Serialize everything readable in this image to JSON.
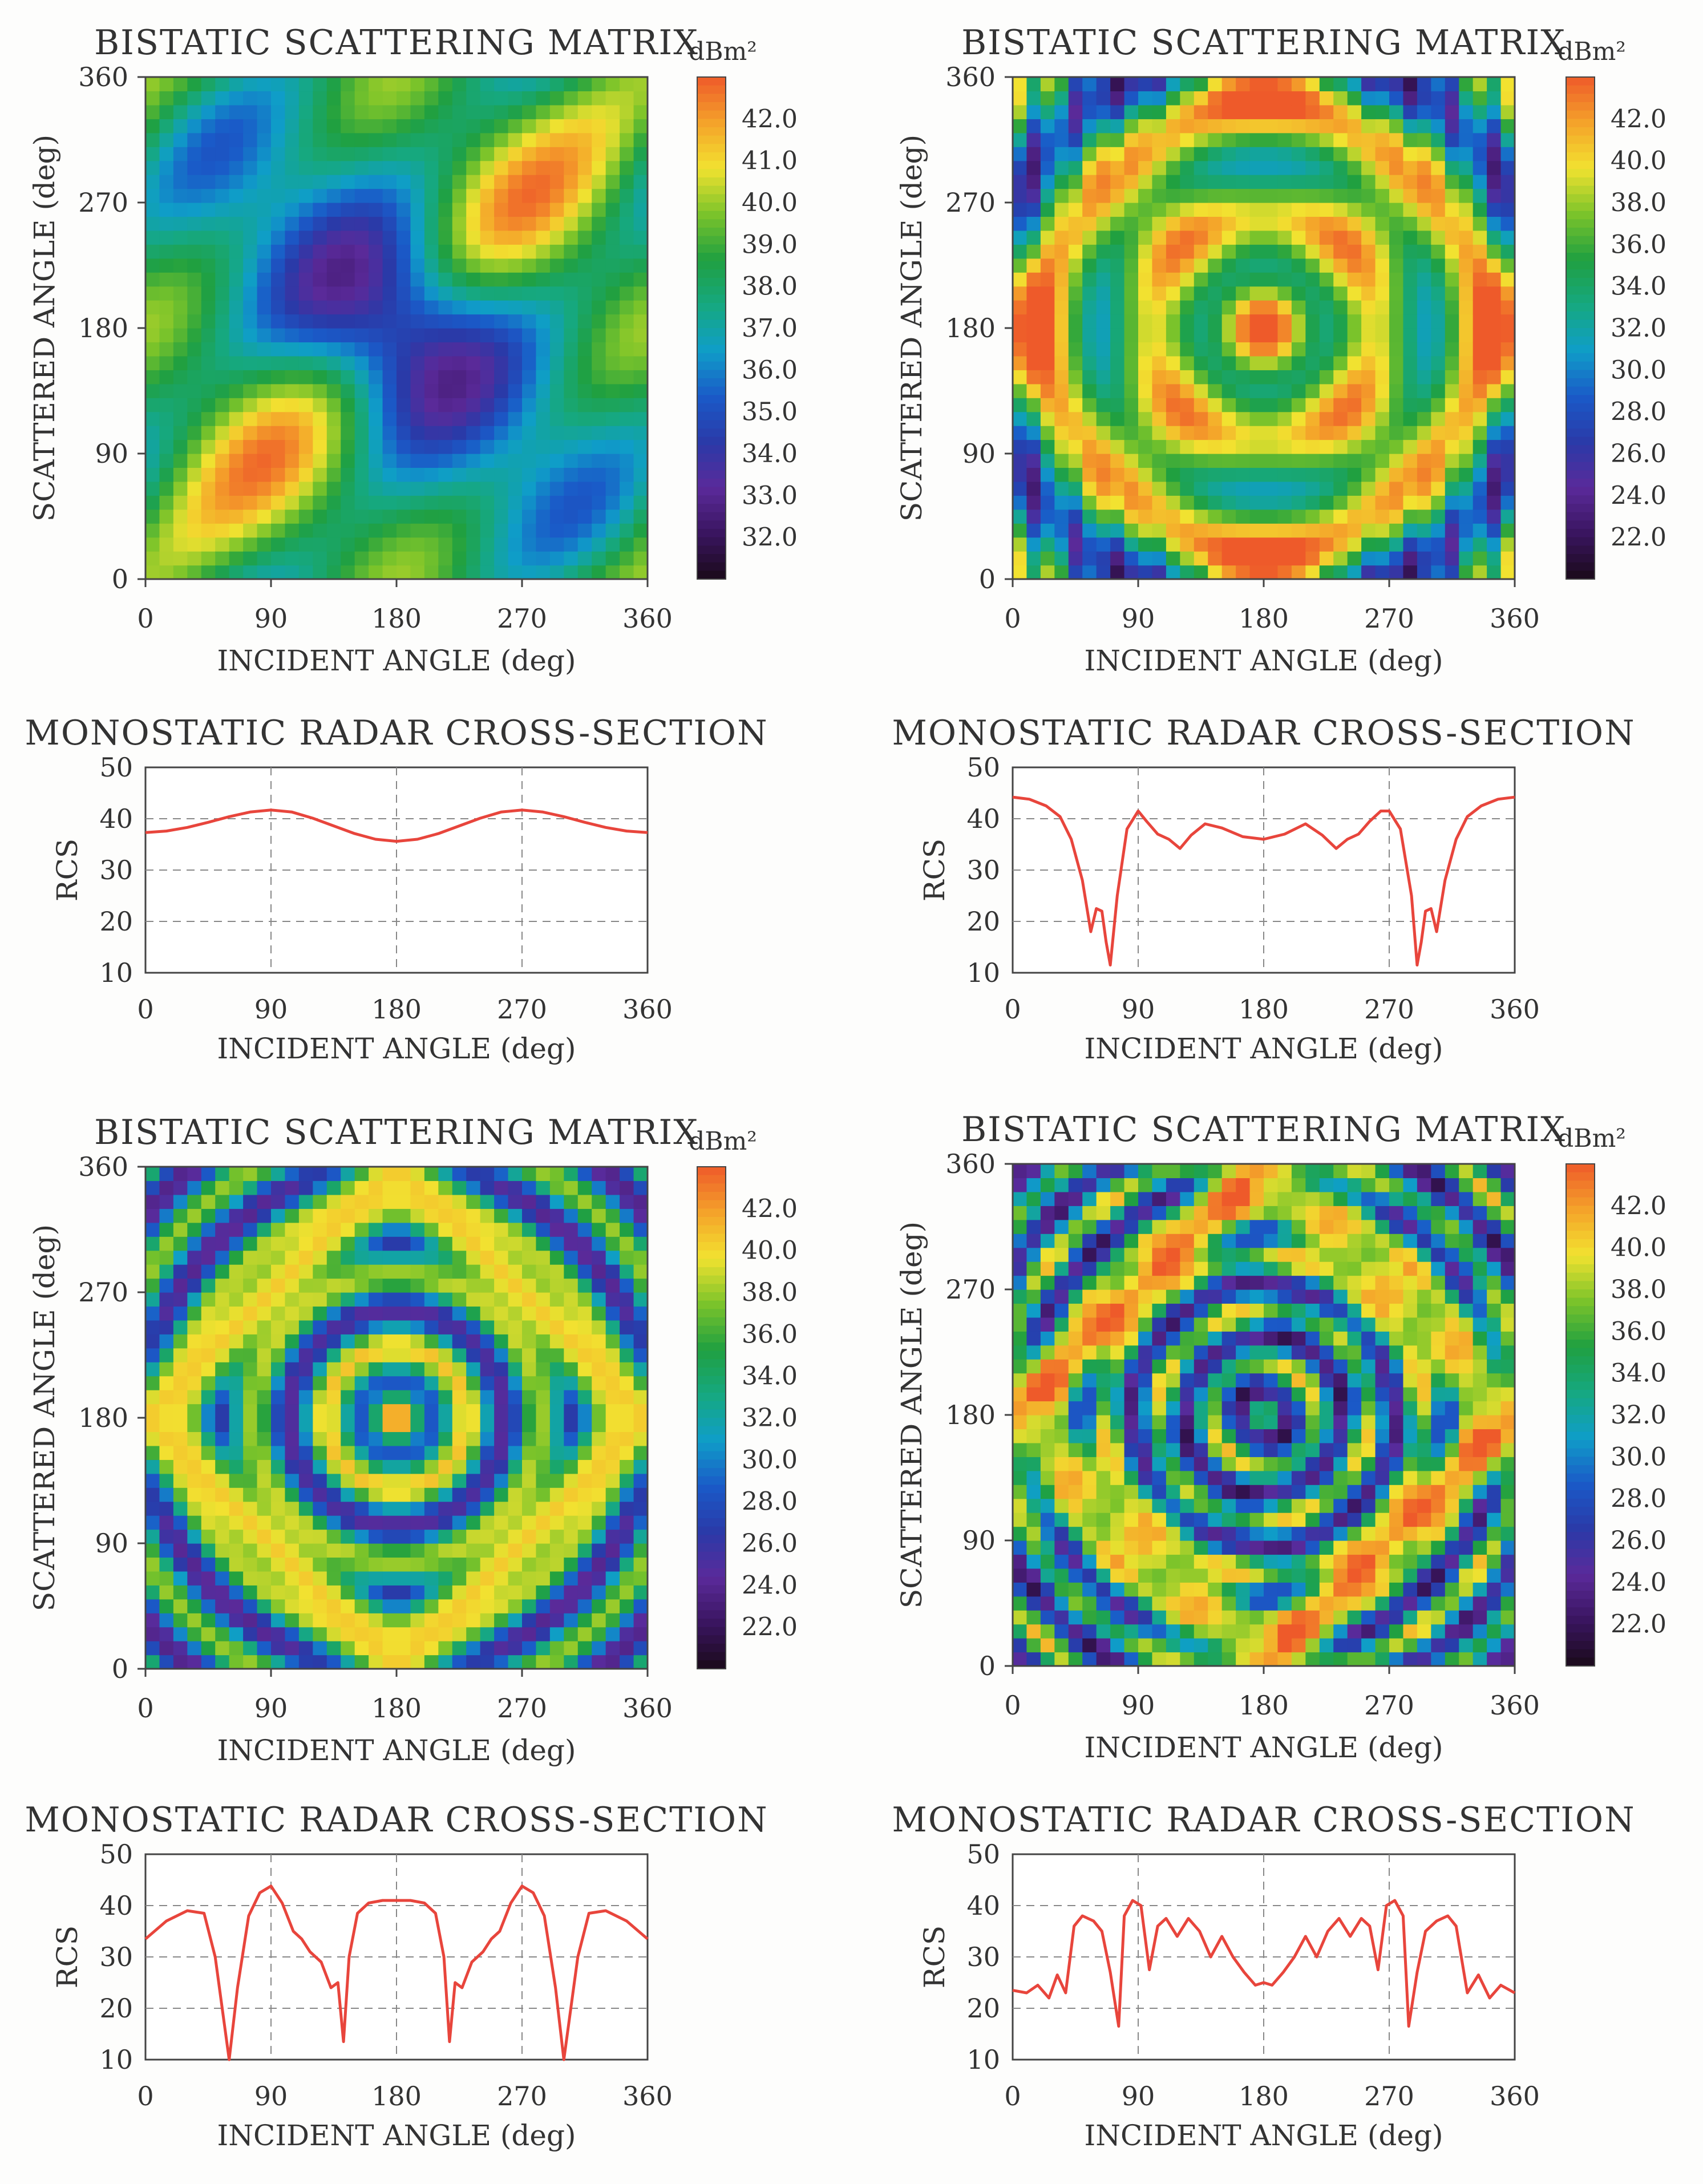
{
  "chart_data": [
    {
      "type": "heatmap",
      "title": "BISTATIC SCATTERING MATRIX",
      "xlabel": "INCIDENT ANGLE (deg)",
      "ylabel": "SCATTERED ANGLE (deg)",
      "xlim": [
        0,
        360
      ],
      "ylim": [
        0,
        360
      ],
      "x_ticks": [
        "0",
        "90",
        "180",
        "270",
        "360"
      ],
      "y_ticks": [
        "0",
        "90",
        "180",
        "270",
        "360"
      ],
      "colorbar": {
        "unit": "dBm²",
        "range": [
          31,
          43
        ],
        "ticks": [
          "42.0",
          "41.0",
          "40.0",
          "39.0",
          "38.0",
          "37.0",
          "36.0",
          "35.0",
          "34.0",
          "33.0",
          "32.0"
        ],
        "tick_values": [
          42,
          41,
          40,
          39,
          38,
          37,
          36,
          35,
          34,
          33,
          32
        ]
      },
      "palette": [
        "#1a0a1a",
        "#3a1560",
        "#5a2a9a",
        "#2a3aa8",
        "#1a5ac8",
        "#0f9ec8",
        "#16a880",
        "#20a040",
        "#7cc42a",
        "#f2e230",
        "#f4a22a",
        "#ee5a2a"
      ],
      "pattern": "weak"
    },
    {
      "type": "heatmap",
      "title": "BISTATIC SCATTERING MATRIX",
      "xlabel": "INCIDENT ANGLE (deg)",
      "ylabel": "SCATTERED ANGLE (deg)",
      "xlim": [
        0,
        360
      ],
      "ylim": [
        0,
        360
      ],
      "x_ticks": [
        "0",
        "90",
        "180",
        "270",
        "360"
      ],
      "y_ticks": [
        "0",
        "90",
        "180",
        "270",
        "360"
      ],
      "colorbar": {
        "unit": "dBm²",
        "range": [
          20,
          44
        ],
        "ticks": [
          "42.0",
          "40.0",
          "38.0",
          "36.0",
          "34.0",
          "32.0",
          "30.0",
          "28.0",
          "26.0",
          "24.0",
          "22.0"
        ],
        "tick_values": [
          42,
          40,
          38,
          36,
          34,
          32,
          30,
          28,
          26,
          24,
          22
        ]
      },
      "palette": [
        "#1a0a1a",
        "#3a1560",
        "#5a2a9a",
        "#2a3aa8",
        "#1a5ac8",
        "#0f9ec8",
        "#16a880",
        "#20a040",
        "#7cc42a",
        "#f2e230",
        "#f4a22a",
        "#ee5a2a"
      ],
      "pattern": "rings"
    },
    {
      "type": "line",
      "title": "MONOSTATIC RADAR CROSS-SECTION",
      "xlabel": "INCIDENT ANGLE (deg)",
      "ylabel": "RCS",
      "xlim": [
        0,
        360
      ],
      "ylim": [
        10,
        50
      ],
      "x_ticks": [
        "0",
        "90",
        "180",
        "270",
        "360"
      ],
      "y_ticks": [
        "10",
        "20",
        "30",
        "40",
        "50"
      ],
      "grid": true,
      "x": [
        0,
        15,
        30,
        45,
        60,
        75,
        90,
        105,
        120,
        135,
        150,
        165,
        180,
        195,
        210,
        225,
        240,
        255,
        270,
        285,
        300,
        315,
        330,
        345,
        360
      ],
      "values": [
        37.3,
        37.6,
        38.3,
        39.3,
        40.4,
        41.3,
        41.7,
        41.3,
        40.1,
        38.6,
        37.1,
        36.0,
        35.6,
        36.0,
        37.1,
        38.6,
        40.1,
        41.3,
        41.7,
        41.3,
        40.4,
        39.3,
        38.3,
        37.6,
        37.3
      ]
    },
    {
      "type": "line",
      "title": "MONOSTATIC RADAR CROSS-SECTION",
      "xlabel": "INCIDENT ANGLE (deg)",
      "ylabel": "RCS",
      "xlim": [
        0,
        360
      ],
      "ylim": [
        10,
        50
      ],
      "x_ticks": [
        "0",
        "90",
        "180",
        "270",
        "360"
      ],
      "y_ticks": [
        "10",
        "20",
        "30",
        "40",
        "50"
      ],
      "grid": true,
      "x": [
        0,
        12,
        24,
        34,
        42,
        50,
        56,
        60,
        64,
        67,
        70,
        75,
        82,
        90,
        96,
        104,
        112,
        120,
        128,
        138,
        150,
        165,
        180,
        195,
        210,
        222,
        232,
        240,
        248,
        256,
        264,
        270,
        278,
        286,
        290,
        293,
        296,
        300,
        304,
        310,
        318,
        326,
        336,
        348,
        360
      ],
      "values": [
        44.2,
        43.8,
        42.5,
        40.4,
        36.0,
        28.0,
        18.0,
        22.5,
        22.0,
        16.0,
        11.5,
        25.0,
        38.0,
        41.5,
        39.5,
        37.0,
        36.0,
        34.2,
        36.8,
        39.0,
        38.2,
        36.5,
        36.0,
        37.0,
        39.0,
        36.8,
        34.2,
        36.0,
        37.0,
        39.5,
        41.5,
        41.5,
        38.0,
        25.0,
        11.5,
        16.0,
        22.0,
        22.5,
        18.0,
        28.0,
        36.0,
        40.4,
        42.5,
        43.8,
        44.2
      ]
    },
    {
      "type": "heatmap",
      "title": "BISTATIC SCATTERING MATRIX",
      "xlabel": "INCIDENT ANGLE (deg)",
      "ylabel": "SCATTERED ANGLE (deg)",
      "xlim": [
        0,
        360
      ],
      "ylim": [
        0,
        360
      ],
      "x_ticks": [
        "0",
        "90",
        "180",
        "270",
        "360"
      ],
      "y_ticks": [
        "0",
        "90",
        "180",
        "270",
        "360"
      ],
      "colorbar": {
        "unit": "dBm²",
        "range": [
          20,
          44
        ],
        "ticks": [
          "42.0",
          "40.0",
          "38.0",
          "36.0",
          "34.0",
          "32.0",
          "30.0",
          "28.0",
          "26.0",
          "24.0",
          "22.0"
        ],
        "tick_values": [
          42,
          40,
          38,
          36,
          34,
          32,
          30,
          28,
          26,
          24,
          22
        ]
      },
      "palette": [
        "#1a0a1a",
        "#3a1560",
        "#5a2a9a",
        "#2a3aa8",
        "#1a5ac8",
        "#0f9ec8",
        "#16a880",
        "#20a040",
        "#7cc42a",
        "#f2e230",
        "#f4a22a",
        "#ee5a2a"
      ],
      "pattern": "diamond-strong"
    },
    {
      "type": "heatmap",
      "title": "BISTATIC SCATTERING MATRIX",
      "xlabel": "INCIDENT ANGLE (deg)",
      "ylabel": "SCATTERED ANGLE (deg)",
      "xlim": [
        0,
        360
      ],
      "ylim": [
        0,
        360
      ],
      "x_ticks": [
        "0",
        "90",
        "180",
        "270",
        "360"
      ],
      "y_ticks": [
        "0",
        "90",
        "180",
        "270",
        "360"
      ],
      "colorbar": {
        "unit": "dBm²",
        "range": [
          20,
          44
        ],
        "ticks": [
          "42.0",
          "40.0",
          "38.0",
          "36.0",
          "34.0",
          "32.0",
          "30.0",
          "28.0",
          "26.0",
          "24.0",
          "22.0"
        ],
        "tick_values": [
          42,
          40,
          38,
          36,
          34,
          32,
          30,
          28,
          26,
          24,
          22
        ]
      },
      "palette": [
        "#1a0a1a",
        "#3a1560",
        "#5a2a9a",
        "#2a3aa8",
        "#1a5ac8",
        "#0f9ec8",
        "#16a880",
        "#20a040",
        "#7cc42a",
        "#f2e230",
        "#f4a22a",
        "#ee5a2a"
      ],
      "pattern": "diamond-rings"
    },
    {
      "type": "line",
      "title": "MONOSTATIC RADAR CROSS-SECTION",
      "xlabel": "INCIDENT ANGLE (deg)",
      "ylabel": "RCS",
      "xlim": [
        0,
        360
      ],
      "ylim": [
        10,
        50
      ],
      "x_ticks": [
        "0",
        "90",
        "180",
        "270",
        "360"
      ],
      "y_ticks": [
        "10",
        "20",
        "30",
        "40",
        "50"
      ],
      "grid": true,
      "x": [
        0,
        15,
        30,
        42,
        50,
        56,
        60,
        66,
        74,
        82,
        90,
        98,
        106,
        112,
        118,
        126,
        133,
        138,
        142,
        146,
        152,
        160,
        170,
        180,
        190,
        200,
        208,
        214,
        218,
        222,
        227,
        234,
        242,
        248,
        254,
        262,
        270,
        278,
        286,
        294,
        300,
        304,
        310,
        318,
        330,
        345,
        360
      ],
      "values": [
        33.5,
        37.0,
        39.0,
        38.5,
        30.0,
        18.0,
        8.0,
        24.0,
        38.0,
        42.5,
        43.8,
        40.5,
        35.0,
        33.5,
        31.0,
        29.0,
        24.0,
        25.0,
        13.5,
        30.0,
        38.5,
        40.5,
        41.0,
        41.0,
        41.0,
        40.5,
        38.5,
        30.0,
        13.5,
        25.0,
        24.0,
        29.0,
        31.0,
        33.5,
        35.0,
        40.5,
        43.8,
        42.5,
        38.0,
        24.0,
        8.0,
        18.0,
        30.0,
        38.5,
        39.0,
        37.0,
        33.5
      ]
    },
    {
      "type": "line",
      "title": "MONOSTATIC RADAR CROSS-SECTION",
      "xlabel": "INCIDENT ANGLE (deg)",
      "ylabel": "RCS",
      "xlim": [
        0,
        360
      ],
      "ylim": [
        10,
        50
      ],
      "x_ticks": [
        "0",
        "90",
        "180",
        "270",
        "360"
      ],
      "y_ticks": [
        "10",
        "20",
        "30",
        "40",
        "50"
      ],
      "grid": true,
      "x": [
        0,
        10,
        18,
        26,
        32,
        38,
        44,
        50,
        58,
        64,
        70,
        76,
        80,
        86,
        92,
        98,
        104,
        110,
        118,
        126,
        134,
        142,
        150,
        158,
        166,
        174,
        180,
        186,
        194,
        202,
        210,
        218,
        226,
        234,
        242,
        250,
        256,
        262,
        268,
        274,
        280,
        284,
        290,
        296,
        304,
        312,
        318,
        326,
        334,
        342,
        350,
        360
      ],
      "values": [
        23.5,
        23.0,
        24.5,
        22.0,
        26.5,
        23.0,
        36.0,
        38.0,
        37.0,
        35.0,
        27.0,
        16.5,
        38.0,
        41.0,
        40.0,
        27.5,
        36.0,
        37.5,
        34.0,
        37.5,
        35.0,
        30.0,
        34.0,
        30.0,
        27.0,
        24.5,
        25.0,
        24.5,
        27.0,
        30.0,
        34.0,
        30.0,
        35.0,
        37.5,
        34.0,
        37.5,
        36.0,
        27.5,
        40.0,
        41.0,
        38.0,
        16.5,
        27.0,
        35.0,
        37.0,
        38.0,
        36.0,
        23.0,
        26.5,
        22.0,
        24.5,
        23.0
      ]
    }
  ]
}
